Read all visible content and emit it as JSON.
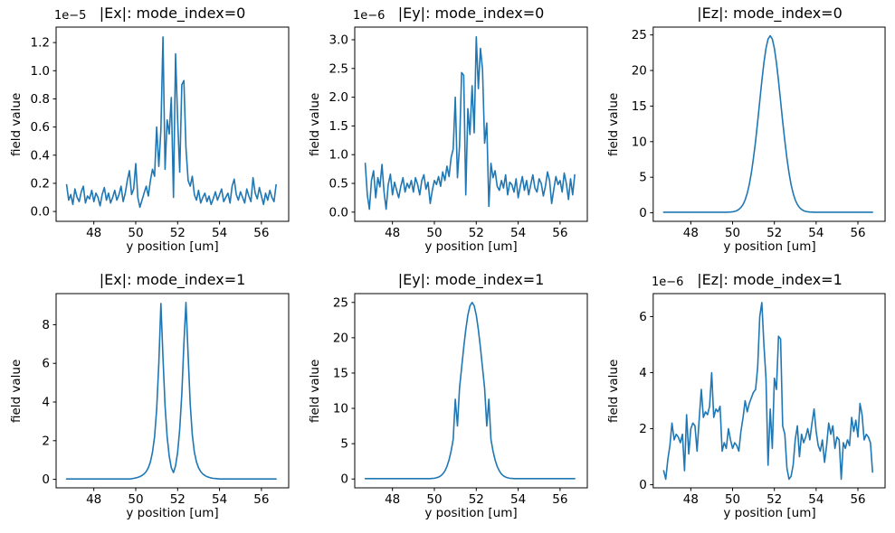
{
  "figure": {
    "background": "#ffffff",
    "line_color": "#1f77b4"
  },
  "chart_data": [
    {
      "type": "line",
      "id": "ex-mode0",
      "title": "|Ex|: mode_index=0",
      "offset_text": "1e−5",
      "xlabel": "y position [um]",
      "ylabel": "field value",
      "line_color": "#1f77b4",
      "xlim": [
        46.2,
        57.3
      ],
      "ylim": [
        -0.07,
        1.31
      ],
      "x_ticks": [
        48,
        50,
        52,
        54,
        56
      ],
      "x_tick_labels": [
        "48",
        "50",
        "52",
        "54",
        "56"
      ],
      "y_ticks": [
        0,
        0.2,
        0.4,
        0.6,
        0.8,
        1.0,
        1.2
      ],
      "y_tick_labels": [
        "0.0",
        "0.2",
        "0.4",
        "0.6",
        "0.8",
        "1.0",
        "1.2"
      ],
      "grid": false,
      "legend": null,
      "x_start": 46.7,
      "x_step": 0.1,
      "values": [
        0.19,
        0.08,
        0.12,
        0.05,
        0.16,
        0.1,
        0.07,
        0.14,
        0.18,
        0.06,
        0.11,
        0.09,
        0.15,
        0.07,
        0.13,
        0.1,
        0.04,
        0.12,
        0.17,
        0.08,
        0.13,
        0.06,
        0.1,
        0.15,
        0.08,
        0.12,
        0.18,
        0.07,
        0.13,
        0.22,
        0.29,
        0.12,
        0.16,
        0.34,
        0.1,
        0.03,
        0.08,
        0.13,
        0.18,
        0.11,
        0.22,
        0.3,
        0.25,
        0.6,
        0.32,
        0.58,
        1.24,
        0.3,
        0.65,
        0.55,
        0.81,
        0.1,
        1.12,
        0.65,
        0.28,
        0.9,
        0.93,
        0.45,
        0.22,
        0.18,
        0.25,
        0.12,
        0.08,
        0.15,
        0.06,
        0.1,
        0.13,
        0.07,
        0.11,
        0.05,
        0.09,
        0.14,
        0.08,
        0.12,
        0.16,
        0.07,
        0.1,
        0.13,
        0.06,
        0.18,
        0.23,
        0.12,
        0.08,
        0.14,
        0.1,
        0.06,
        0.16,
        0.11,
        0.07,
        0.24,
        0.13,
        0.09,
        0.17,
        0.11,
        0.05,
        0.13,
        0.08,
        0.15,
        0.1,
        0.07,
        0.19
      ]
    },
    {
      "type": "line",
      "id": "ey-mode0",
      "title": "|Ey|: mode_index=0",
      "offset_text": "1e−6",
      "xlabel": "y position [um]",
      "ylabel": "field value",
      "line_color": "#1f77b4",
      "xlim": [
        46.2,
        57.3
      ],
      "ylim": [
        -0.16,
        3.22
      ],
      "x_ticks": [
        48,
        50,
        52,
        54,
        56
      ],
      "x_tick_labels": [
        "48",
        "50",
        "52",
        "54",
        "56"
      ],
      "y_ticks": [
        0,
        0.5,
        1.0,
        1.5,
        2.0,
        2.5,
        3.0
      ],
      "y_tick_labels": [
        "0.0",
        "0.5",
        "1.0",
        "1.5",
        "2.0",
        "2.5",
        "3.0"
      ],
      "grid": false,
      "legend": null,
      "x_start": 46.7,
      "x_step": 0.1,
      "values": [
        0.85,
        0.3,
        0.05,
        0.55,
        0.72,
        0.25,
        0.6,
        0.44,
        0.83,
        0.35,
        0.05,
        0.48,
        0.66,
        0.3,
        0.52,
        0.38,
        0.25,
        0.45,
        0.6,
        0.35,
        0.5,
        0.42,
        0.55,
        0.35,
        0.6,
        0.48,
        0.3,
        0.55,
        0.65,
        0.4,
        0.52,
        0.15,
        0.38,
        0.55,
        0.48,
        0.62,
        0.45,
        0.7,
        0.55,
        0.8,
        0.62,
        0.95,
        1.1,
        2.0,
        0.6,
        1.15,
        2.43,
        2.38,
        0.3,
        1.8,
        1.35,
        2.2,
        1.38,
        3.05,
        2.15,
        2.85,
        2.48,
        1.2,
        1.55,
        0.1,
        0.85,
        0.6,
        0.72,
        0.45,
        0.38,
        0.55,
        0.42,
        0.65,
        0.3,
        0.52,
        0.48,
        0.35,
        0.58,
        0.25,
        0.45,
        0.62,
        0.38,
        0.55,
        0.3,
        0.48,
        0.65,
        0.42,
        0.35,
        0.58,
        0.5,
        0.28,
        0.45,
        0.7,
        0.55,
        0.15,
        0.4,
        0.62,
        0.48,
        0.55,
        0.35,
        0.68,
        0.5,
        0.22,
        0.58,
        0.3,
        0.65
      ]
    },
    {
      "type": "line",
      "id": "ez-mode0",
      "title": "|Ez|: mode_index=0",
      "offset_text": "",
      "xlabel": "y position [um]",
      "ylabel": "field value",
      "line_color": "#1f77b4",
      "xlim": [
        46.2,
        57.3
      ],
      "ylim": [
        -1.2,
        26.1
      ],
      "x_ticks": [
        48,
        50,
        52,
        54,
        56
      ],
      "x_tick_labels": [
        "48",
        "50",
        "52",
        "54",
        "56"
      ],
      "y_ticks": [
        0,
        5,
        10,
        15,
        20,
        25
      ],
      "y_tick_labels": [
        "0",
        "5",
        "10",
        "15",
        "20",
        "25"
      ],
      "grid": false,
      "legend": null,
      "x_start": 46.7,
      "x_step": 0.1,
      "values": [
        0.08,
        0.08,
        0.08,
        0.08,
        0.08,
        0.08,
        0.08,
        0.08,
        0.08,
        0.08,
        0.08,
        0.08,
        0.08,
        0.08,
        0.08,
        0.08,
        0.08,
        0.08,
        0.08,
        0.08,
        0.08,
        0.08,
        0.08,
        0.08,
        0.08,
        0.08,
        0.08,
        0.08,
        0.08,
        0.08,
        0.08,
        0.09,
        0.11,
        0.14,
        0.2,
        0.3,
        0.47,
        0.74,
        1.17,
        1.81,
        2.73,
        3.98,
        5.63,
        7.67,
        10.1,
        12.83,
        15.7,
        18.53,
        21.08,
        23.11,
        24.43,
        24.88,
        24.43,
        23.11,
        21.08,
        18.53,
        15.7,
        12.83,
        10.1,
        7.67,
        5.63,
        3.98,
        2.73,
        1.81,
        1.17,
        0.74,
        0.47,
        0.3,
        0.2,
        0.14,
        0.11,
        0.09,
        0.08,
        0.08,
        0.08,
        0.08,
        0.08,
        0.08,
        0.08,
        0.08,
        0.08,
        0.08,
        0.08,
        0.08,
        0.08,
        0.08,
        0.08,
        0.08,
        0.08,
        0.08,
        0.08,
        0.08,
        0.08,
        0.08,
        0.08,
        0.08,
        0.08,
        0.08,
        0.08,
        0.08,
        0.08
      ]
    },
    {
      "type": "line",
      "id": "ex-mode1",
      "title": "|Ex|: mode_index=1",
      "offset_text": "",
      "xlabel": "y position [um]",
      "ylabel": "field value",
      "line_color": "#1f77b4",
      "xlim": [
        46.2,
        57.3
      ],
      "ylim": [
        -0.44,
        9.61
      ],
      "x_ticks": [
        48,
        50,
        52,
        54,
        56
      ],
      "x_tick_labels": [
        "48",
        "50",
        "52",
        "54",
        "56"
      ],
      "y_ticks": [
        0,
        2,
        4,
        6,
        8
      ],
      "y_tick_labels": [
        "0",
        "2",
        "4",
        "6",
        "8"
      ],
      "grid": false,
      "legend": null,
      "x_start": 46.7,
      "x_step": 0.1,
      "values": [
        0.02,
        0.02,
        0.02,
        0.02,
        0.02,
        0.02,
        0.02,
        0.02,
        0.02,
        0.02,
        0.02,
        0.02,
        0.02,
        0.02,
        0.02,
        0.02,
        0.02,
        0.02,
        0.02,
        0.02,
        0.02,
        0.02,
        0.02,
        0.02,
        0.02,
        0.02,
        0.02,
        0.02,
        0.02,
        0.02,
        0.02,
        0.03,
        0.05,
        0.07,
        0.1,
        0.14,
        0.2,
        0.28,
        0.4,
        0.6,
        0.9,
        1.4,
        2.2,
        3.6,
        6.0,
        9.1,
        6.3,
        3.8,
        2.2,
        1.2,
        0.6,
        0.35,
        0.7,
        1.4,
        2.6,
        4.4,
        7.0,
        9.15,
        6.4,
        3.9,
        2.3,
        1.4,
        0.9,
        0.6,
        0.4,
        0.28,
        0.2,
        0.14,
        0.1,
        0.07,
        0.05,
        0.04,
        0.03,
        0.02,
        0.02,
        0.02,
        0.02,
        0.02,
        0.02,
        0.02,
        0.02,
        0.02,
        0.02,
        0.02,
        0.02,
        0.02,
        0.02,
        0.02,
        0.02,
        0.02,
        0.02,
        0.02,
        0.02,
        0.02,
        0.02,
        0.02,
        0.02,
        0.02,
        0.02,
        0.02,
        0.02
      ]
    },
    {
      "type": "line",
      "id": "ey-mode1",
      "title": "|Ey|: mode_index=1",
      "offset_text": "",
      "xlabel": "y position [um]",
      "ylabel": "field value",
      "line_color": "#1f77b4",
      "xlim": [
        46.2,
        57.3
      ],
      "ylim": [
        -1.25,
        26.25
      ],
      "x_ticks": [
        48,
        50,
        52,
        54,
        56
      ],
      "x_tick_labels": [
        "48",
        "50",
        "52",
        "54",
        "56"
      ],
      "y_ticks": [
        0,
        5,
        10,
        15,
        20,
        25
      ],
      "y_tick_labels": [
        "0",
        "5",
        "10",
        "15",
        "20",
        "25"
      ],
      "grid": false,
      "legend": null,
      "x_start": 46.7,
      "x_step": 0.1,
      "values": [
        0.05,
        0.05,
        0.05,
        0.05,
        0.05,
        0.05,
        0.05,
        0.05,
        0.05,
        0.05,
        0.05,
        0.05,
        0.05,
        0.05,
        0.05,
        0.05,
        0.05,
        0.05,
        0.05,
        0.05,
        0.05,
        0.05,
        0.05,
        0.05,
        0.05,
        0.05,
        0.05,
        0.05,
        0.05,
        0.05,
        0.05,
        0.06,
        0.08,
        0.11,
        0.17,
        0.27,
        0.44,
        0.71,
        1.14,
        1.78,
        2.7,
        3.96,
        5.62,
        11.3,
        7.5,
        12.88,
        15.75,
        18.6,
        21.15,
        23.2,
        24.52,
        25.0,
        24.52,
        23.2,
        21.15,
        18.6,
        15.75,
        12.88,
        7.5,
        11.3,
        5.62,
        3.96,
        2.7,
        1.78,
        1.14,
        0.71,
        0.44,
        0.27,
        0.17,
        0.11,
        0.08,
        0.06,
        0.05,
        0.05,
        0.05,
        0.05,
        0.05,
        0.05,
        0.05,
        0.05,
        0.05,
        0.05,
        0.05,
        0.05,
        0.05,
        0.05,
        0.05,
        0.05,
        0.05,
        0.05,
        0.05,
        0.05,
        0.05,
        0.05,
        0.05,
        0.05,
        0.05,
        0.05,
        0.05,
        0.05,
        0.05
      ]
    },
    {
      "type": "line",
      "id": "ez-mode1",
      "title": "|Ez|: mode_index=1",
      "offset_text": "1e−6",
      "xlabel": "y position [um]",
      "ylabel": "field value",
      "line_color": "#1f77b4",
      "xlim": [
        46.2,
        57.3
      ],
      "ylim": [
        -0.11,
        6.82
      ],
      "x_ticks": [
        48,
        50,
        52,
        54,
        56
      ],
      "x_tick_labels": [
        "48",
        "50",
        "52",
        "54",
        "56"
      ],
      "y_ticks": [
        0,
        2,
        4,
        6
      ],
      "y_tick_labels": [
        "0",
        "2",
        "4",
        "6"
      ],
      "grid": false,
      "legend": null,
      "x_start": 46.7,
      "x_step": 0.1,
      "values": [
        0.5,
        0.2,
        0.9,
        1.4,
        2.2,
        1.6,
        1.8,
        1.7,
        1.5,
        1.8,
        0.5,
        2.5,
        1.1,
        2.0,
        2.2,
        2.1,
        1.2,
        2.3,
        3.4,
        2.4,
        2.6,
        2.5,
        2.8,
        4.0,
        2.4,
        2.7,
        2.6,
        2.8,
        1.2,
        1.5,
        1.3,
        2.0,
        1.6,
        1.3,
        1.5,
        1.4,
        1.2,
        1.9,
        2.4,
        3.0,
        2.6,
        2.9,
        3.1,
        3.3,
        3.4,
        4.2,
        6.0,
        6.5,
        5.0,
        3.8,
        0.7,
        2.7,
        1.3,
        3.8,
        3.4,
        5.3,
        5.2,
        2.1,
        1.8,
        0.6,
        0.2,
        0.3,
        0.7,
        1.6,
        2.1,
        1.0,
        1.8,
        1.5,
        1.7,
        2.0,
        1.6,
        2.2,
        2.7,
        1.9,
        1.4,
        1.2,
        1.6,
        0.8,
        1.4,
        2.2,
        1.8,
        2.1,
        1.3,
        1.7,
        1.6,
        0.2,
        1.5,
        1.3,
        1.6,
        1.4,
        2.4,
        1.9,
        2.3,
        1.7,
        2.9,
        2.5,
        1.6,
        1.8,
        1.7,
        1.5,
        0.45
      ]
    }
  ]
}
